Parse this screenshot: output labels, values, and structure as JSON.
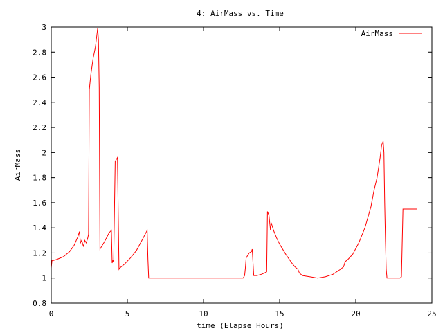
{
  "chart_data": {
    "type": "line",
    "title": "4: AirMass vs. Time",
    "xlabel": "time (Elapse Hours)",
    "ylabel": "AirMass",
    "xlim": [
      0,
      25
    ],
    "ylim": [
      0.8,
      3
    ],
    "xticks": [
      "0",
      "5",
      "10",
      "15",
      "20",
      "25"
    ],
    "yticks": [
      "0.8",
      "1",
      "1.2",
      "1.4",
      "1.6",
      "1.8",
      "2",
      "2.2",
      "2.4",
      "2.6",
      "2.8",
      "3"
    ],
    "grid": false,
    "legend": "top-right",
    "series": [
      {
        "name": "AirMass",
        "color": "#ff0000",
        "x": [
          0,
          0.05,
          0.15,
          0.4,
          0.8,
          1.0,
          1.2,
          1.5,
          1.75,
          1.85,
          1.92,
          2.0,
          2.12,
          2.2,
          2.3,
          2.4,
          2.45,
          2.5,
          2.6,
          2.75,
          2.9,
          3.05,
          3.1,
          3.15,
          3.2,
          3.3,
          3.5,
          3.8,
          3.95,
          4.0,
          4.05,
          4.1,
          4.2,
          4.3,
          4.35,
          4.45,
          4.5,
          4.8,
          5.2,
          5.6,
          6.0,
          6.3,
          6.35,
          6.4,
          7.0,
          8.0,
          9.0,
          10.0,
          11.0,
          12.0,
          12.6,
          12.7,
          12.75,
          12.8,
          13.0,
          13.15,
          13.2,
          13.3,
          13.5,
          13.8,
          14.0,
          14.15,
          14.2,
          14.3,
          14.4,
          14.45,
          14.5,
          14.6,
          14.8,
          15.0,
          15.4,
          15.8,
          16.0,
          16.2,
          16.3,
          16.5,
          17.0,
          17.5,
          18.0,
          18.5,
          19.0,
          19.2,
          19.3,
          19.5,
          19.8,
          20.2,
          20.6,
          21.0,
          21.2,
          21.4,
          21.6,
          21.7,
          21.8,
          21.85,
          21.9,
          21.95,
          22.0,
          22.05,
          22.2,
          22.5,
          22.8,
          22.9,
          23.0,
          23.1,
          23.2,
          23.5,
          23.8,
          24.0
        ],
        "y": [
          1.08,
          1.14,
          1.14,
          1.15,
          1.17,
          1.19,
          1.21,
          1.26,
          1.33,
          1.37,
          1.28,
          1.3,
          1.25,
          1.3,
          1.28,
          1.32,
          1.35,
          2.5,
          2.62,
          2.75,
          2.84,
          2.99,
          2.9,
          2.52,
          1.23,
          1.25,
          1.29,
          1.36,
          1.38,
          1.12,
          1.14,
          1.13,
          1.93,
          1.95,
          1.96,
          1.07,
          1.08,
          1.11,
          1.16,
          1.22,
          1.31,
          1.38,
          1.15,
          1.0,
          1.0,
          1.0,
          1.0,
          1.0,
          1.0,
          1.0,
          1.0,
          1.02,
          1.08,
          1.16,
          1.2,
          1.21,
          1.23,
          1.02,
          1.02,
          1.03,
          1.04,
          1.05,
          1.53,
          1.5,
          1.38,
          1.44,
          1.42,
          1.38,
          1.32,
          1.27,
          1.19,
          1.12,
          1.09,
          1.07,
          1.04,
          1.02,
          1.01,
          1.0,
          1.01,
          1.03,
          1.07,
          1.09,
          1.13,
          1.15,
          1.19,
          1.28,
          1.4,
          1.57,
          1.7,
          1.8,
          1.96,
          2.06,
          2.09,
          2.0,
          1.6,
          1.3,
          1.07,
          1.0,
          1.0,
          1.0,
          1.0,
          1.0,
          1.01,
          1.55,
          1.55,
          1.55,
          1.55,
          1.55
        ]
      }
    ]
  }
}
